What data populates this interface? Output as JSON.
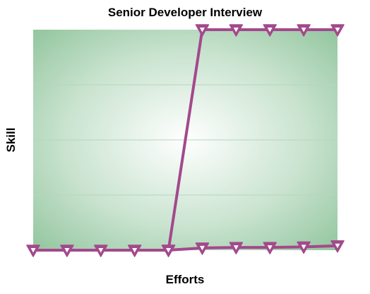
{
  "chart_data": {
    "type": "line",
    "title": "Senior Developer Interview",
    "xlabel": "Efforts",
    "ylabel": "Skill",
    "grid": true,
    "legend": "none",
    "x": [
      1,
      2,
      3,
      4,
      5,
      6,
      7,
      8,
      9,
      10
    ],
    "ylim": [
      0,
      4
    ],
    "series": [
      {
        "values": [
          0,
          0,
          0,
          0,
          0,
          0.04,
          0.05,
          0.05,
          0.06,
          0.08
        ],
        "color": "#a3498c",
        "marker": "triangle-down"
      },
      {
        "x": [
          5,
          6,
          7,
          8,
          9,
          10
        ],
        "values": [
          0,
          4,
          4,
          4,
          4,
          4
        ],
        "color": "#a3498c",
        "marker": "triangle-down"
      }
    ],
    "colors": {
      "plot_background_center": "#ffffff",
      "plot_background_edge": "#90c49c",
      "line": "#a3498c"
    }
  }
}
